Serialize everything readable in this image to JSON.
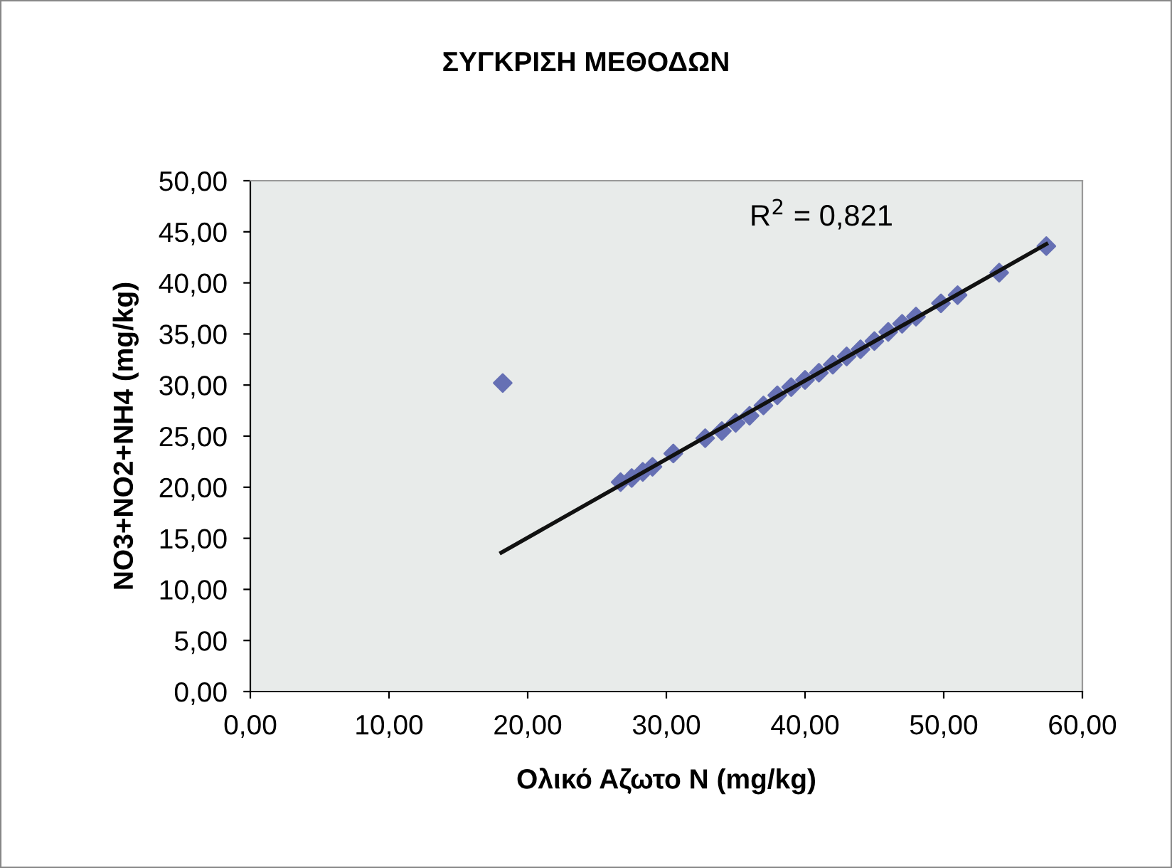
{
  "chart_data": {
    "type": "scatter",
    "title": "ΣΥΓΚΡΙΣΗ ΜΕΘΟΔΩΝ",
    "xlabel": "Ολικό Αζωτο N (mg/kg)",
    "ylabel": "NO3+NO2+NH4 (mg/kg)",
    "annotations": [
      "R$^{2}$ = 0,821"
    ],
    "xlim": [
      0,
      60
    ],
    "xticks": [
      {
        "value": 0,
        "label": "0,00"
      },
      {
        "value": 10,
        "label": "10,00"
      },
      {
        "value": 20,
        "label": "20,00"
      },
      {
        "value": 30,
        "label": "30,00"
      },
      {
        "value": 40,
        "label": "40,00"
      },
      {
        "value": 50,
        "label": "50,00"
      },
      {
        "value": 60,
        "label": "60,00"
      }
    ],
    "ylim": [
      0,
      50
    ],
    "yticks": [
      {
        "value": 0,
        "label": "0,00"
      },
      {
        "value": 5,
        "label": "5,00"
      },
      {
        "value": 10,
        "label": "10,00"
      },
      {
        "value": 15,
        "label": "15,00"
      },
      {
        "value": 20,
        "label": "20,00"
      },
      {
        "value": 25,
        "label": "25,00"
      },
      {
        "value": 30,
        "label": "30,00"
      },
      {
        "value": 35,
        "label": "35,00"
      },
      {
        "value": 40,
        "label": "40,00"
      },
      {
        "value": 45,
        "label": "45,00"
      },
      {
        "value": 50,
        "label": "50,00"
      }
    ],
    "grid": false,
    "legend": false,
    "series": [
      {
        "marker": "diamond",
        "color": "#6670b4",
        "x": [
          18.2,
          26.7,
          27.5,
          28.3,
          29.0,
          30.5,
          32.8,
          34.0,
          35.0,
          36.0,
          37.0,
          38.0,
          39.0,
          40.0,
          41.0,
          42.0,
          43.0,
          44.0,
          45.0,
          46.0,
          47.0,
          48.0,
          49.8,
          51.0,
          54.0,
          57.4
        ],
        "values": [
          30.2,
          20.5,
          20.9,
          21.5,
          22.0,
          23.3,
          24.8,
          25.5,
          26.3,
          27.0,
          28.0,
          29.0,
          29.8,
          30.5,
          31.2,
          32.0,
          32.8,
          33.5,
          34.3,
          35.2,
          36.0,
          36.7,
          38.0,
          38.8,
          41.0,
          43.6
        ]
      },
      {
        "type": "line",
        "marker": "none",
        "color": "#111111",
        "x": [
          18.1,
          57.4
        ],
        "values": [
          13.6,
          43.8
        ]
      }
    ]
  }
}
